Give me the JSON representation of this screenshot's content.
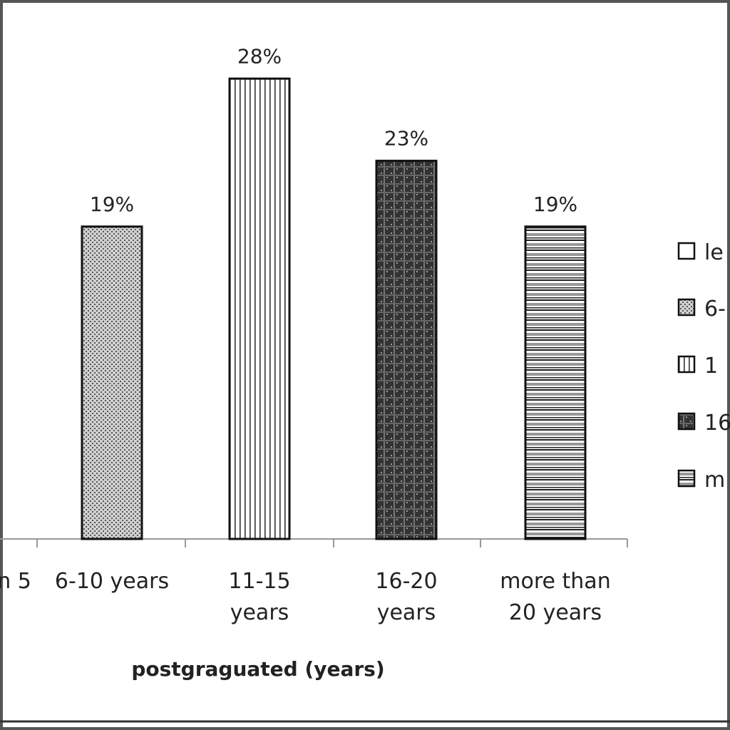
{
  "chart_data": {
    "type": "bar",
    "categories": [
      "n 5",
      "6-10 years",
      "11-15 years",
      "16-20 years",
      "more than 20 years"
    ],
    "category_lines": [
      [
        "n 5"
      ],
      [
        "6-10 years"
      ],
      [
        "11-15",
        "years"
      ],
      [
        "16-20",
        "years"
      ],
      [
        "more than",
        "20 years"
      ]
    ],
    "values": [
      null,
      19,
      28,
      23,
      19
    ],
    "data_labels": [
      "",
      "19%",
      "28%",
      "23%",
      "19%"
    ],
    "ylim": [
      0,
      30
    ],
    "grid": false,
    "xlabel": "postgraguated  (years)",
    "ylabel": "",
    "title": "",
    "legend": {
      "position": "right",
      "entries": [
        "le",
        "6-",
        "1",
        "16",
        "m"
      ]
    },
    "patterns": [
      "white",
      "dotted-gray",
      "vertical-stripes",
      "dark-checker",
      "horizontal-stripes"
    ]
  },
  "colors": {
    "border": "#111111",
    "frame": "#555555",
    "axis": "#999999",
    "dark_fill": "#3a3a3a",
    "gray_fill": "#c8c8c8"
  }
}
